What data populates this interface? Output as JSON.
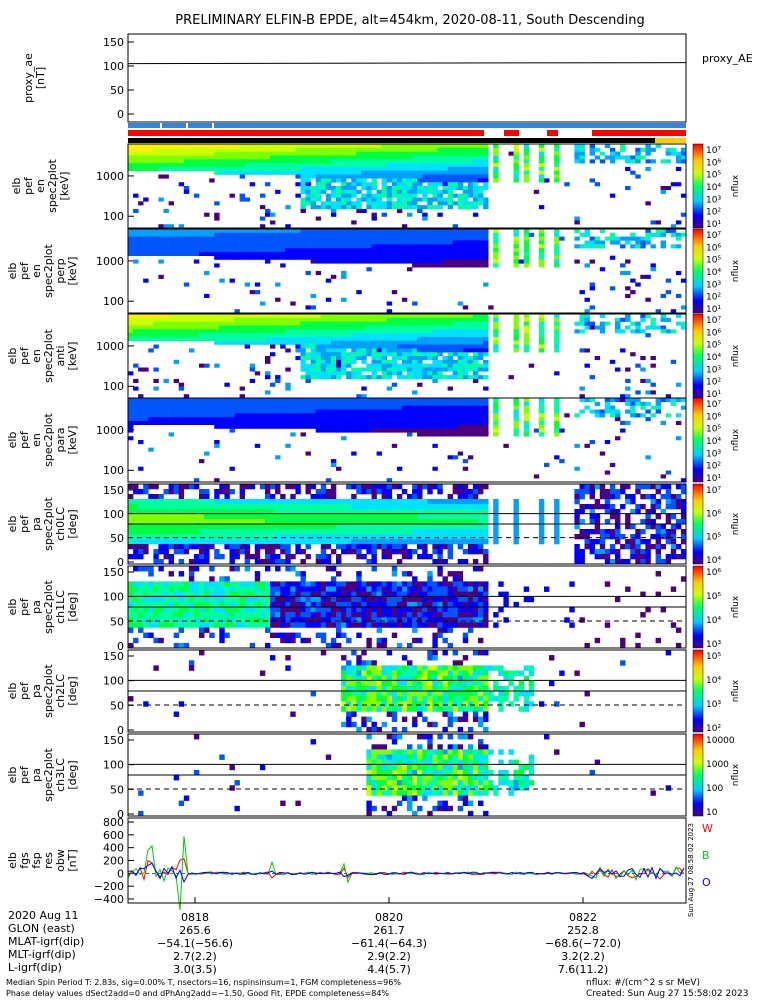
{
  "chart_data": {
    "type": "heatmap",
    "title": "PRELIMINARY ELFIN-B EPDE, alt=454km, 2020-08-11, South Descending",
    "time_axis": {
      "ticks": [
        "0818",
        "0820",
        "0822"
      ],
      "date_label": "2020 Aug 11"
    },
    "ephemeris": {
      "labels": [
        "GLON (east)",
        "MLAT-igrf(dip)",
        "MLT-igrf(dip)",
        "L-igrf(dip)"
      ],
      "rows": [
        [
          "265.6",
          "261.7",
          "252.8"
        ],
        [
          "−54.1(−56.6)",
          "−61.4(−64.3)",
          "−68.6(−72.0)"
        ],
        [
          "2.7(2.2)",
          "2.9(2.2)",
          "3.2(2.2)"
        ],
        [
          "3.0(3.5)",
          "4.4(5.7)",
          "7.6(11.2)"
        ]
      ]
    },
    "panels": [
      {
        "ylabel": [
          "proxy_ae",
          "[nT]"
        ],
        "yticks": [
          "150",
          "100",
          "50",
          "0"
        ],
        "legend": "proxy_AE",
        "ae_value": 105
      },
      {
        "ylabel": [
          "elb",
          "pef",
          "en",
          "spec2plot",
          "[keV]"
        ],
        "yticks": [
          "1000",
          "100"
        ],
        "cbar": [
          "10⁷",
          "10⁶",
          "10⁵",
          "10⁴",
          "10³",
          "10²",
          "10¹"
        ],
        "cbar_label": "nflux"
      },
      {
        "ylabel": [
          "elb",
          "pef",
          "en",
          "spec2plot",
          "perp",
          "[keV]"
        ],
        "yticks": [
          "1000",
          "100"
        ],
        "cbar": [
          "10⁷",
          "10⁶",
          "10⁵",
          "10⁴",
          "10³",
          "10²",
          "10¹"
        ],
        "cbar_label": "nflux"
      },
      {
        "ylabel": [
          "elb",
          "pef",
          "en",
          "spec2plot",
          "anti",
          "[keV]"
        ],
        "yticks": [
          "1000",
          "100"
        ],
        "cbar": [
          "10⁷",
          "10⁶",
          "10⁵",
          "10⁴",
          "10³",
          "10²",
          "10¹"
        ],
        "cbar_label": "nflux"
      },
      {
        "ylabel": [
          "elb",
          "pef",
          "en",
          "spec2plot",
          "para",
          "[keV]"
        ],
        "yticks": [
          "1000",
          "100"
        ],
        "cbar": [
          "10⁷",
          "10⁶",
          "10⁵",
          "10⁴",
          "10³",
          "10²",
          "10¹"
        ],
        "cbar_label": "nflux"
      },
      {
        "ylabel": [
          "elb",
          "pef",
          "pa",
          "spec2plot",
          "ch0LC",
          "[deg]"
        ],
        "yticks": [
          "150",
          "100",
          "50",
          "0"
        ],
        "cbar": [
          "10⁷",
          "10⁶",
          "10⁵",
          "10⁴"
        ],
        "cbar_label": "nflux"
      },
      {
        "ylabel": [
          "elb",
          "pef",
          "pa",
          "spec2plot",
          "ch1LC",
          "[deg]"
        ],
        "yticks": [
          "150",
          "100",
          "50",
          "0"
        ],
        "cbar": [
          "10⁶",
          "10⁵",
          "10⁴",
          "10³"
        ],
        "cbar_label": "nflux"
      },
      {
        "ylabel": [
          "elb",
          "pef",
          "pa",
          "spec2plot",
          "ch2LC",
          "[deg]"
        ],
        "yticks": [
          "150",
          "100",
          "50",
          "0"
        ],
        "cbar": [
          "10⁵",
          "10⁴",
          "10³",
          "10²"
        ],
        "cbar_label": "nflux"
      },
      {
        "ylabel": [
          "elb",
          "pef",
          "pa",
          "spec2plot",
          "ch3LC",
          "[deg]"
        ],
        "yticks": [
          "150",
          "100",
          "50",
          "0"
        ],
        "cbar": [
          "10000",
          "1000",
          "100",
          "10"
        ],
        "cbar_label": "nflux"
      },
      {
        "ylabel": [
          "elb",
          "fgs",
          "fsp",
          "res",
          "obw",
          "[nT]"
        ],
        "yticks": [
          "800",
          "600",
          "400",
          "200",
          "0",
          "−200",
          "−400"
        ],
        "legend": [
          "W",
          "B",
          "O"
        ],
        "legend_colors": [
          "#ff0000",
          "#00cc00",
          "#0000ff"
        ]
      }
    ]
  },
  "footer": {
    "line1": "Median Spin Period T: 2.83s, sig=0.00% T, nsectors=16, nspinsinsum=1, FGM completeness=96%",
    "line2": "Phase delay values dSect2add=0 and dPhAng2add=−1.50, Good Fit, EPDE completeness=84%",
    "nflux_units": "nflux: #/(cm^2 s sr MeV)",
    "created": "Created: Sun Aug 27 15:58:02 2023",
    "side_stamp": "Sun Aug 27 08:58:02 2023"
  }
}
